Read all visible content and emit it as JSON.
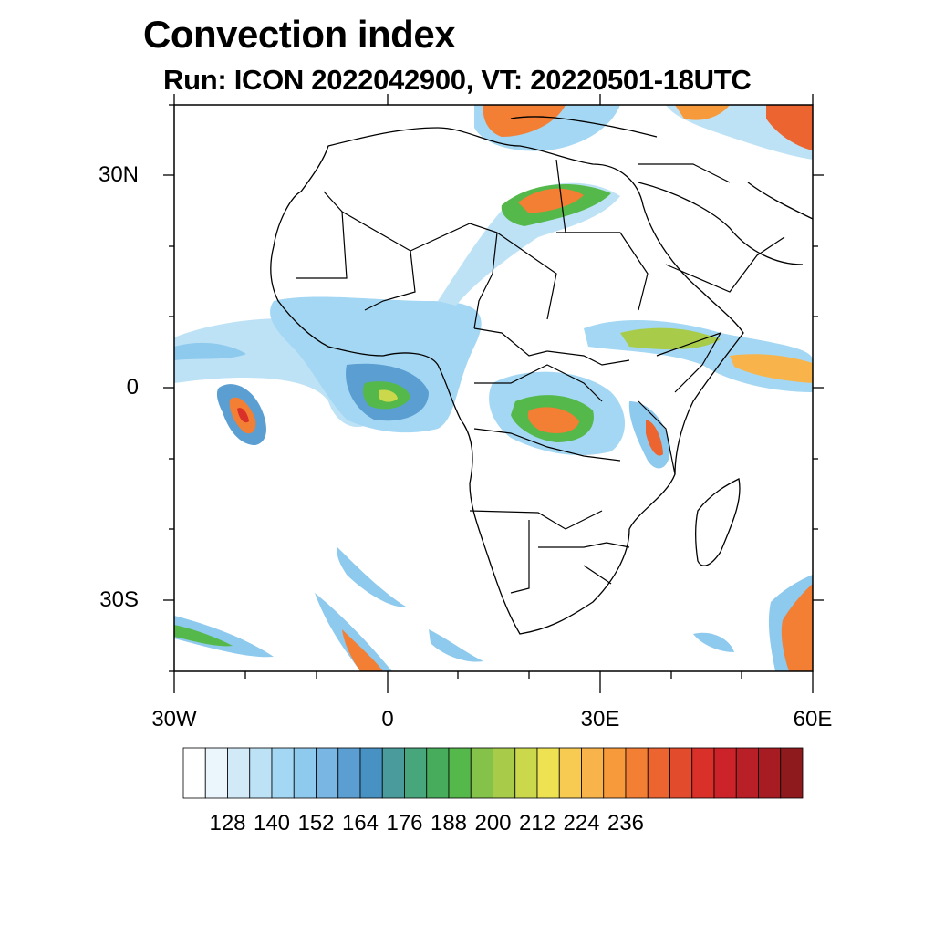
{
  "title": "Convection index",
  "subtitle": "Run: ICON 2022042900,  VT: 20220501-18UTC",
  "axes": {
    "lat_ticks": [
      "30N",
      "0",
      "30S"
    ],
    "lon_ticks": [
      "30W",
      "0",
      "30E",
      "60E"
    ]
  },
  "colorbar": {
    "labels": [
      "128",
      "140",
      "152",
      "164",
      "176",
      "188",
      "200",
      "212",
      "224",
      "236"
    ],
    "colors": [
      "#ffffff",
      "#eaf5fc",
      "#d2eaf8",
      "#bde2f6",
      "#a4d7f3",
      "#8ec9ee",
      "#79b6e3",
      "#5b9fd2",
      "#4792c2",
      "#4a9c9c",
      "#48a67c",
      "#47ad5c",
      "#55b84a",
      "#84c24a",
      "#a8cc4a",
      "#cbd84b",
      "#eee253",
      "#f7cb52",
      "#f8b44a",
      "#f79a3c",
      "#f27f34",
      "#ec6530",
      "#e24b2c",
      "#d93029",
      "#cc2229",
      "#b81f27",
      "#a61c22",
      "#8f1a1d"
    ]
  },
  "chart_data": {
    "type": "heatmap",
    "title": "Convection index",
    "subtitle": "Run: ICON 2022042900,  VT: 20220501-18UTC",
    "x_axis": {
      "ticks": [
        "30W",
        "0",
        "30E",
        "60E"
      ],
      "range": [
        -30,
        60
      ]
    },
    "y_axis": {
      "ticks": [
        "30N",
        "0",
        "30S"
      ],
      "range": [
        -40,
        40
      ]
    },
    "colorbar_labels": [
      128,
      140,
      152,
      164,
      176,
      188,
      200,
      212,
      224,
      236
    ]
  }
}
